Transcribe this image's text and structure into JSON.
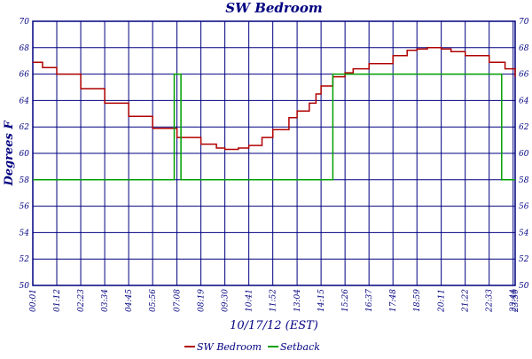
{
  "chart_data": {
    "type": "line",
    "title": "SW Bedroom",
    "xlabel": "10/17/12 (EST)",
    "ylabel": "Degrees F",
    "ylim": [
      50,
      70
    ],
    "yticks": [
      50,
      52,
      54,
      56,
      58,
      60,
      62,
      64,
      66,
      68,
      70
    ],
    "xlim": [
      "00:01",
      "23:50"
    ],
    "xtick_labels": [
      "00:01",
      "01:12",
      "02:23",
      "03:34",
      "04:45",
      "05:56",
      "07:08",
      "08:19",
      "09:30",
      "10:41",
      "11:52",
      "13:04",
      "14:15",
      "15:26",
      "16:37",
      "17:48",
      "18:59",
      "20:11",
      "21:22",
      "22:33",
      "23:44",
      "23:50"
    ],
    "grid": true,
    "legend_position": "bottom-center",
    "series": [
      {
        "name": "SW Bedroom",
        "color": "#b00000",
        "step": true,
        "points": [
          [
            "00:01",
            66.9
          ],
          [
            "00:30",
            66.5
          ],
          [
            "01:12",
            66.0
          ],
          [
            "02:23",
            64.9
          ],
          [
            "03:34",
            63.8
          ],
          [
            "04:45",
            62.8
          ],
          [
            "05:56",
            61.9
          ],
          [
            "07:08",
            61.2
          ],
          [
            "08:19",
            60.7
          ],
          [
            "09:05",
            60.4
          ],
          [
            "09:30",
            60.3
          ],
          [
            "10:10",
            60.4
          ],
          [
            "10:41",
            60.6
          ],
          [
            "11:20",
            61.2
          ],
          [
            "11:52",
            61.8
          ],
          [
            "12:40",
            62.7
          ],
          [
            "13:04",
            63.2
          ],
          [
            "13:40",
            63.8
          ],
          [
            "14:00",
            64.5
          ],
          [
            "14:15",
            65.1
          ],
          [
            "14:50",
            65.8
          ],
          [
            "15:26",
            66.1
          ],
          [
            "15:50",
            66.4
          ],
          [
            "16:37",
            66.8
          ],
          [
            "17:48",
            67.4
          ],
          [
            "18:30",
            67.8
          ],
          [
            "18:59",
            67.9
          ],
          [
            "19:30",
            68.0
          ],
          [
            "20:11",
            67.9
          ],
          [
            "20:40",
            67.7
          ],
          [
            "21:22",
            67.4
          ],
          [
            "22:33",
            66.9
          ],
          [
            "23:20",
            66.4
          ],
          [
            "23:50",
            65.8
          ]
        ]
      },
      {
        "name": "Setback",
        "color": "#00a000",
        "step": true,
        "points": [
          [
            "00:01",
            58
          ],
          [
            "07:00",
            58
          ],
          [
            "07:00",
            66
          ],
          [
            "07:20",
            66
          ],
          [
            "07:20",
            58
          ],
          [
            "14:50",
            58
          ],
          [
            "14:50",
            66
          ],
          [
            "23:10",
            66
          ],
          [
            "23:10",
            58
          ],
          [
            "23:50",
            58
          ]
        ]
      }
    ]
  },
  "colors": {
    "frame": "#000080",
    "grid": "#000080"
  }
}
